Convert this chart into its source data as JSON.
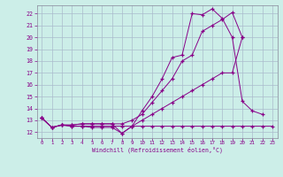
{
  "xlabel": "Windchill (Refroidissement éolien,°C)",
  "background_color": "#cceee8",
  "grid_color": "#aabbcc",
  "line_color": "#880088",
  "xlim": [
    -0.5,
    23.5
  ],
  "ylim": [
    11.5,
    22.7
  ],
  "xticks": [
    0,
    1,
    2,
    3,
    4,
    5,
    6,
    7,
    8,
    9,
    10,
    11,
    12,
    13,
    14,
    15,
    16,
    17,
    18,
    19,
    20,
    21,
    22,
    23
  ],
  "yticks": [
    12,
    13,
    14,
    15,
    16,
    17,
    18,
    19,
    20,
    21,
    22
  ],
  "line1_x": [
    0,
    1,
    2,
    3,
    4,
    5,
    6,
    7,
    8,
    9,
    10,
    11,
    12,
    13,
    14,
    15,
    16,
    17,
    18,
    19,
    20,
    21,
    22,
    23
  ],
  "line1_y": [
    13.2,
    12.4,
    12.6,
    12.5,
    12.5,
    12.4,
    12.4,
    12.4,
    11.9,
    12.5,
    12.5,
    12.5,
    12.5,
    12.5,
    12.5,
    12.5,
    12.5,
    12.5,
    12.5,
    12.5,
    12.5,
    12.5,
    12.5,
    12.5
  ],
  "line2_x": [
    0,
    1,
    2,
    3,
    4,
    5,
    6,
    7,
    8,
    9,
    10,
    11,
    12,
    13,
    14,
    15,
    16,
    17,
    18,
    19,
    20
  ],
  "line2_y": [
    13.2,
    12.4,
    12.6,
    12.5,
    12.5,
    12.5,
    12.5,
    12.5,
    12.5,
    12.5,
    13.0,
    13.5,
    14.0,
    14.5,
    15.0,
    15.5,
    16.0,
    16.5,
    17.0,
    17.0,
    20.0
  ],
  "line3_x": [
    0,
    1,
    2,
    3,
    4,
    5,
    6,
    7,
    8,
    9,
    10,
    11,
    12,
    13,
    14,
    15,
    16,
    17,
    18,
    19,
    20
  ],
  "line3_y": [
    13.2,
    12.4,
    12.6,
    12.6,
    12.7,
    12.7,
    12.7,
    12.7,
    12.7,
    13.0,
    13.5,
    14.5,
    15.5,
    16.5,
    18.0,
    18.5,
    20.5,
    21.0,
    21.5,
    22.1,
    20.0
  ],
  "line4_x": [
    0,
    1,
    2,
    3,
    4,
    5,
    6,
    7,
    8,
    9,
    10,
    11,
    12,
    13,
    14,
    15,
    16,
    17,
    18,
    19,
    20,
    21,
    22,
    23
  ],
  "line4_y": [
    13.2,
    12.4,
    12.6,
    12.6,
    12.7,
    12.7,
    12.7,
    12.7,
    11.9,
    12.5,
    13.8,
    15.0,
    16.5,
    18.3,
    18.5,
    22.0,
    21.9,
    22.4,
    21.6,
    20.0,
    14.6,
    13.8,
    13.5,
    null
  ]
}
